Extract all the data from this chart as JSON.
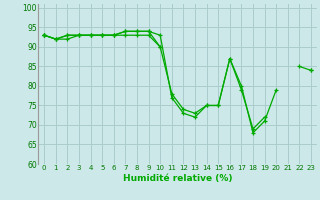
{
  "xlabel": "Humidité relative (%)",
  "bg_color": "#cce8e8",
  "grid_color": "#aacccc",
  "line_color": "#00aa00",
  "xlim": [
    -0.5,
    23.5
  ],
  "ylim": [
    60,
    101
  ],
  "yticks": [
    60,
    65,
    70,
    75,
    80,
    85,
    90,
    95,
    100
  ],
  "xticks": [
    0,
    1,
    2,
    3,
    4,
    5,
    6,
    7,
    8,
    9,
    10,
    11,
    12,
    13,
    14,
    15,
    16,
    17,
    18,
    19,
    20,
    21,
    22,
    23
  ],
  "series": [
    [
      93,
      92,
      93,
      93,
      93,
      93,
      93,
      94,
      94,
      94,
      93,
      77,
      73,
      72,
      75,
      75,
      87,
      80,
      68,
      71,
      79,
      null,
      null,
      null
    ],
    [
      93,
      92,
      93,
      93,
      93,
      93,
      93,
      94,
      94,
      94,
      90,
      78,
      74,
      73,
      75,
      75,
      87,
      79,
      69,
      72,
      null,
      null,
      null,
      null
    ],
    [
      93,
      92,
      92,
      93,
      93,
      93,
      93,
      93,
      93,
      93,
      90,
      null,
      null,
      null,
      null,
      null,
      null,
      null,
      null,
      null,
      null,
      null,
      85,
      84
    ],
    [
      93,
      null,
      null,
      null,
      null,
      null,
      null,
      null,
      null,
      null,
      null,
      null,
      null,
      null,
      null,
      null,
      null,
      null,
      null,
      null,
      null,
      null,
      null,
      84
    ]
  ]
}
